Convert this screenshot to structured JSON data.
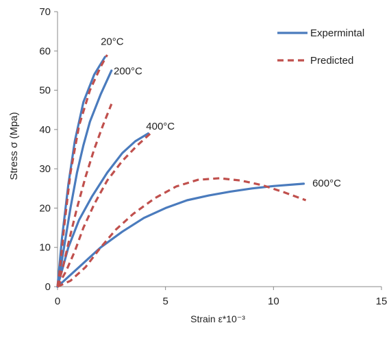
{
  "chart_data": {
    "type": "line",
    "title": "",
    "xlabel": "Strain ε*10⁻³",
    "ylabel": "Stress σ (Mpa)",
    "xlim": [
      0,
      15
    ],
    "ylim": [
      0,
      70
    ],
    "x_ticks": [
      "0",
      "5",
      "10",
      "15"
    ],
    "y_ticks": [
      "0",
      "10",
      "20",
      "30",
      "40",
      "50",
      "60",
      "70"
    ],
    "grid": false,
    "legend_position": "top-right",
    "legend": [
      {
        "label": "Expermintal",
        "color": "#4a7bbd",
        "style": "solid"
      },
      {
        "label": "Predicted",
        "color": "#c0504d",
        "style": "dashed"
      }
    ],
    "series": [
      {
        "group": "Expermintal",
        "temperature": "20°C",
        "points": [
          [
            0,
            0
          ],
          [
            0.2,
            12
          ],
          [
            0.5,
            26
          ],
          [
            0.8,
            37
          ],
          [
            1.2,
            47
          ],
          [
            1.7,
            54
          ],
          [
            2.2,
            58.5
          ]
        ]
      },
      {
        "group": "Expermintal",
        "temperature": "200°C",
        "points": [
          [
            0,
            0
          ],
          [
            0.3,
            10
          ],
          [
            0.6,
            20
          ],
          [
            0.9,
            29
          ],
          [
            1.2,
            36
          ],
          [
            1.5,
            42
          ],
          [
            2,
            49
          ],
          [
            2.5,
            55
          ]
        ]
      },
      {
        "group": "Expermintal",
        "temperature": "400°C",
        "points": [
          [
            0,
            0
          ],
          [
            0.5,
            10
          ],
          [
            1,
            17
          ],
          [
            1.6,
            23
          ],
          [
            2.3,
            29
          ],
          [
            3,
            34
          ],
          [
            3.6,
            37
          ],
          [
            4.2,
            39
          ]
        ]
      },
      {
        "group": "Expermintal",
        "temperature": "600°C",
        "points": [
          [
            0,
            0
          ],
          [
            1,
            5
          ],
          [
            2,
            10
          ],
          [
            3,
            14
          ],
          [
            4,
            17.5
          ],
          [
            5,
            20
          ],
          [
            6,
            22
          ],
          [
            7,
            23.2
          ],
          [
            8,
            24.2
          ],
          [
            9,
            25
          ],
          [
            10,
            25.6
          ],
          [
            11.4,
            26.2
          ]
        ]
      },
      {
        "group": "Predicted",
        "temperature": "20°C",
        "points": [
          [
            0,
            0
          ],
          [
            0.1,
            4
          ],
          [
            0.3,
            15
          ],
          [
            0.6,
            29
          ],
          [
            1,
            41
          ],
          [
            1.5,
            50
          ],
          [
            2,
            56
          ],
          [
            2.3,
            59
          ]
        ]
      },
      {
        "group": "Predicted",
        "temperature": "200°C",
        "points": [
          [
            0,
            0
          ],
          [
            0.25,
            5
          ],
          [
            0.5,
            11
          ],
          [
            0.9,
            20
          ],
          [
            1.3,
            28
          ],
          [
            1.7,
            35
          ],
          [
            2.1,
            41
          ],
          [
            2.5,
            46.5
          ]
        ]
      },
      {
        "group": "Predicted",
        "temperature": "400°C",
        "points": [
          [
            0,
            0
          ],
          [
            0.4,
            4
          ],
          [
            0.8,
            9
          ],
          [
            1.2,
            15
          ],
          [
            1.7,
            21
          ],
          [
            2.3,
            27
          ],
          [
            3,
            32
          ],
          [
            3.7,
            36
          ],
          [
            4.3,
            39
          ]
        ]
      },
      {
        "group": "Predicted",
        "temperature": "600°C",
        "points": [
          [
            0,
            0
          ],
          [
            0.6,
            1.5
          ],
          [
            1.3,
            5
          ],
          [
            2,
            10
          ],
          [
            2.7,
            14.5
          ],
          [
            3.5,
            18.5
          ],
          [
            4.5,
            22.5
          ],
          [
            5.5,
            25.5
          ],
          [
            6.5,
            27.2
          ],
          [
            7.5,
            27.6
          ],
          [
            8.5,
            27
          ],
          [
            9.5,
            25.8
          ],
          [
            10.5,
            24
          ],
          [
            11.5,
            22
          ]
        ]
      }
    ],
    "annotations": [
      {
        "text": "20°C",
        "x": 2.0,
        "y": 61.5
      },
      {
        "text": "200°C",
        "x": 2.6,
        "y": 54
      },
      {
        "text": "400°C",
        "x": 4.1,
        "y": 40
      },
      {
        "text": "600°C",
        "x": 11.8,
        "y": 25.5
      }
    ]
  }
}
